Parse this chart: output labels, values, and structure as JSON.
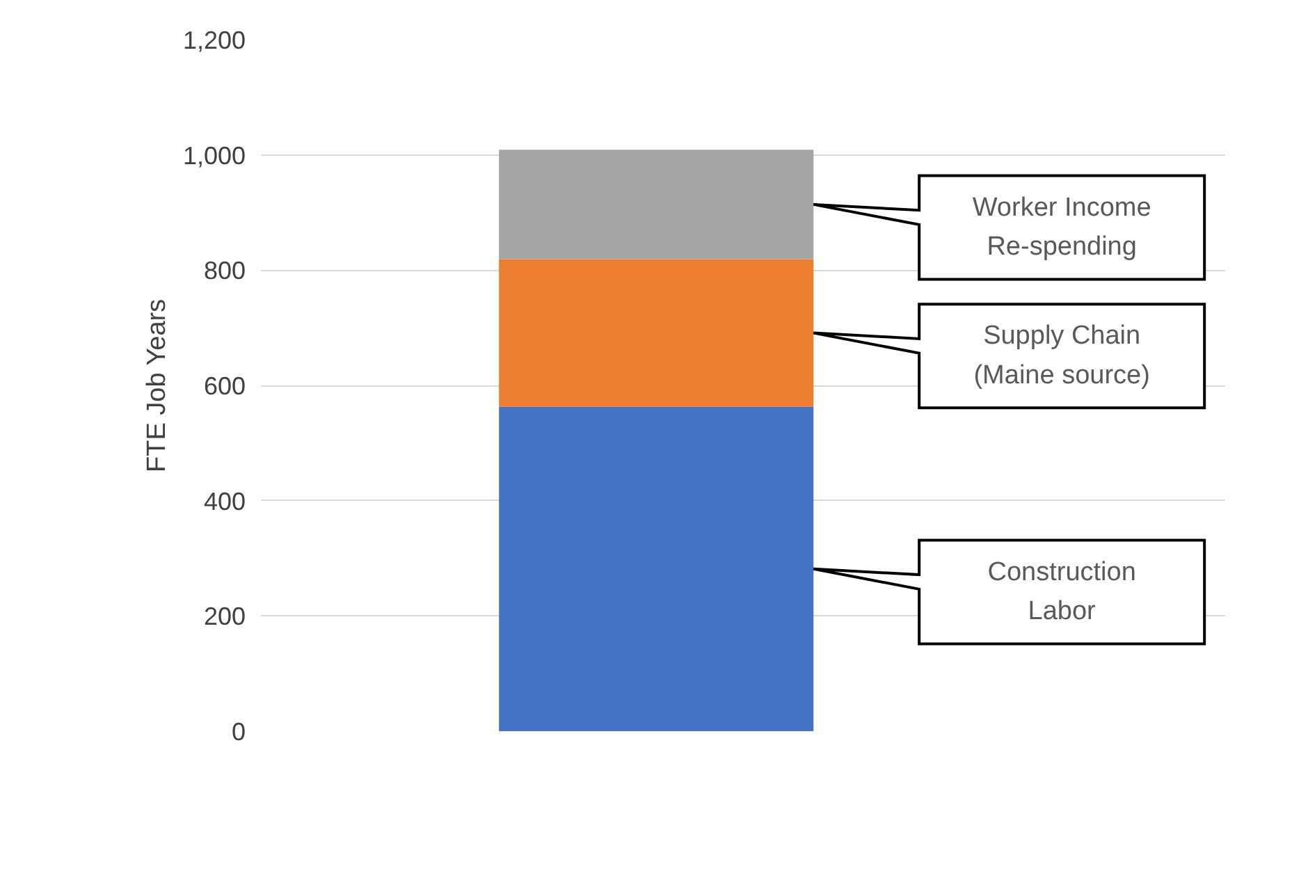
{
  "chart_data": {
    "type": "bar",
    "stacked": true,
    "ylabel": "FTE Job Years",
    "categories": [
      null
    ],
    "series": [
      {
        "name": "Construction Labor",
        "color": "#4472c4",
        "values": [
          563
        ]
      },
      {
        "name": "Supply Chain (Maine source)",
        "color": "#ed7d31",
        "values": [
          256
        ]
      },
      {
        "name": "Worker Income Re-spending",
        "color": "#a5a5a5",
        "values": [
          190
        ]
      }
    ],
    "ylim": [
      0,
      1200
    ],
    "yticks": [
      0,
      {
        "value": 200,
        "label": "200"
      },
      400,
      600,
      800,
      {
        "value": 1000,
        "label": "1,000"
      },
      {
        "value": 1200,
        "label": "1,200"
      }
    ],
    "grid": "y"
  }
}
